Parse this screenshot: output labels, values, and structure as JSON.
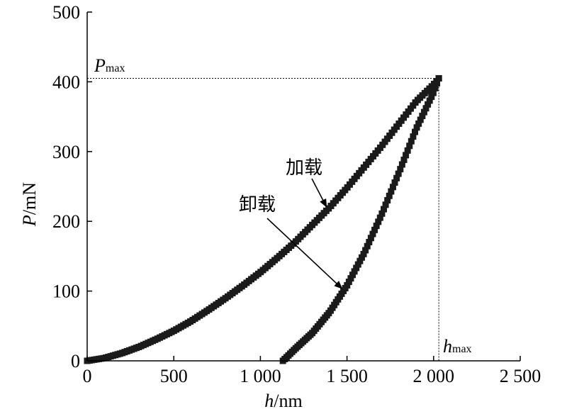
{
  "chart_data": {
    "type": "scatter",
    "title": "",
    "xlabel": {
      "var": "h",
      "unit": "/nm"
    },
    "ylabel": {
      "var": "P",
      "unit": "/mN"
    },
    "xlim": [
      0,
      2500
    ],
    "ylim": [
      0,
      500
    ],
    "x_ticks": [
      0,
      500,
      1000,
      1500,
      2000,
      2500
    ],
    "x_tick_labels": [
      "0",
      "500",
      "1 000",
      "1 500",
      "2 000",
      "2 500"
    ],
    "y_ticks": [
      0,
      100,
      200,
      300,
      400,
      500
    ],
    "y_tick_labels": [
      "0",
      "100",
      "200",
      "300",
      "400",
      "500"
    ],
    "grid": false,
    "series": [
      {
        "name": "加载",
        "x": [
          0,
          100,
          200,
          300,
          400,
          500,
          600,
          700,
          800,
          900,
          1000,
          1100,
          1200,
          1300,
          1400,
          1500,
          1600,
          1700,
          1800,
          1900,
          2000,
          2030
        ],
        "y": [
          0,
          4,
          11,
          20,
          31,
          43,
          57,
          73,
          90,
          108,
          127,
          148,
          170,
          195,
          220,
          248,
          278,
          308,
          340,
          372,
          396,
          405
        ]
      },
      {
        "name": "卸载",
        "x": [
          1130,
          1200,
          1300,
          1400,
          1500,
          1600,
          1700,
          1800,
          1900,
          2000,
          2030
        ],
        "y": [
          0,
          17,
          40,
          70,
          108,
          155,
          210,
          270,
          333,
          385,
          405
        ]
      }
    ],
    "reference_lines": {
      "p_max": {
        "value": 405,
        "label_var": "P",
        "label_sub": "max"
      },
      "h_max": {
        "value": 2030,
        "label_var": "h",
        "label_sub": "max"
      }
    },
    "annotations": [
      {
        "text": "加载",
        "target_series": 0,
        "target_x": 1390
      },
      {
        "text": "卸载",
        "target_series": 1,
        "target_x": 1480
      }
    ]
  }
}
